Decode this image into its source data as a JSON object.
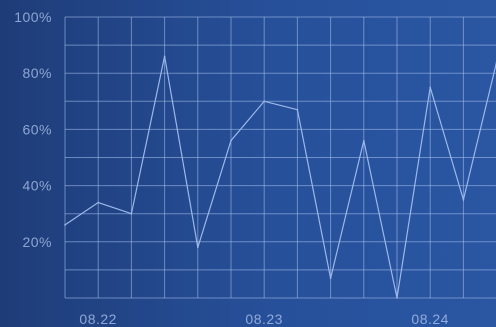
{
  "chart_data": {
    "type": "line",
    "title": "",
    "xlabel": "",
    "ylabel": "",
    "ylim": [
      0,
      100
    ],
    "yticks": [
      20,
      40,
      60,
      80,
      100
    ],
    "ytick_labels": [
      "20%",
      "40%",
      "60%",
      "80%",
      "100%"
    ],
    "x_tick_labels": [
      {
        "label": "08.22",
        "index": 1
      },
      {
        "label": "08.23",
        "index": 6
      },
      {
        "label": "08.24",
        "index": 11
      }
    ],
    "x_count": 14,
    "values": [
      26,
      34,
      30,
      86,
      18,
      56,
      70,
      67,
      7,
      56,
      0,
      75,
      35,
      84
    ],
    "grid": true,
    "line_color": "#9cb8ea",
    "grid_color": "#aac3f0"
  }
}
